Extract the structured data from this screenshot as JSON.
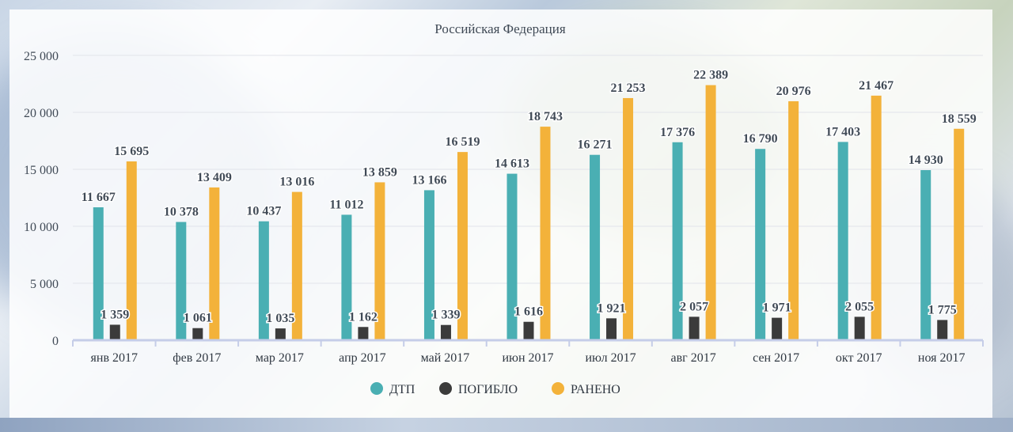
{
  "chart_data": {
    "type": "bar",
    "title": "Российская Федерация",
    "categories": [
      "янв 2017",
      "фев 2017",
      "мар 2017",
      "апр 2017",
      "май 2017",
      "июн 2017",
      "июл 2017",
      "авг 2017",
      "сен 2017",
      "окт 2017",
      "ноя 2017"
    ],
    "series": [
      {
        "name": "ДТП",
        "color": "#4aafb3",
        "values": [
          11667,
          10378,
          10437,
          11012,
          13166,
          14613,
          16271,
          17376,
          16790,
          17403,
          14930
        ],
        "labels": [
          "11 667",
          "10 378",
          "10 437",
          "11 012",
          "13 166",
          "14 613",
          "16 271",
          "17 376",
          "16 790",
          "17 403",
          "14 930"
        ]
      },
      {
        "name": "ПОГИБЛО",
        "color": "#3b3b3b",
        "values": [
          1359,
          1061,
          1035,
          1162,
          1339,
          1616,
          1921,
          2057,
          1971,
          2055,
          1775
        ],
        "labels": [
          "1 359",
          "1 061",
          "1 035",
          "1 162",
          "1 339",
          "1 616",
          "1 921",
          "2 057",
          "1 971",
          "2 055",
          "1 775"
        ]
      },
      {
        "name": "РАНЕНО",
        "color": "#f3b23a",
        "values": [
          15695,
          13409,
          13016,
          13859,
          16519,
          18743,
          21253,
          22389,
          20976,
          21467,
          18559
        ],
        "labels": [
          "15 695",
          "13 409",
          "13 016",
          "13 859",
          "16 519",
          "18 743",
          "21 253",
          "22 389",
          "20 976",
          "21 467",
          "18 559"
        ]
      }
    ],
    "yticks": [
      "0",
      "5 000",
      "10 000",
      "15 000",
      "20 000",
      "25 000"
    ],
    "ylim": [
      0,
      25000
    ],
    "grid": true,
    "legend": "bottom",
    "axis_color": "#c5cde8"
  }
}
